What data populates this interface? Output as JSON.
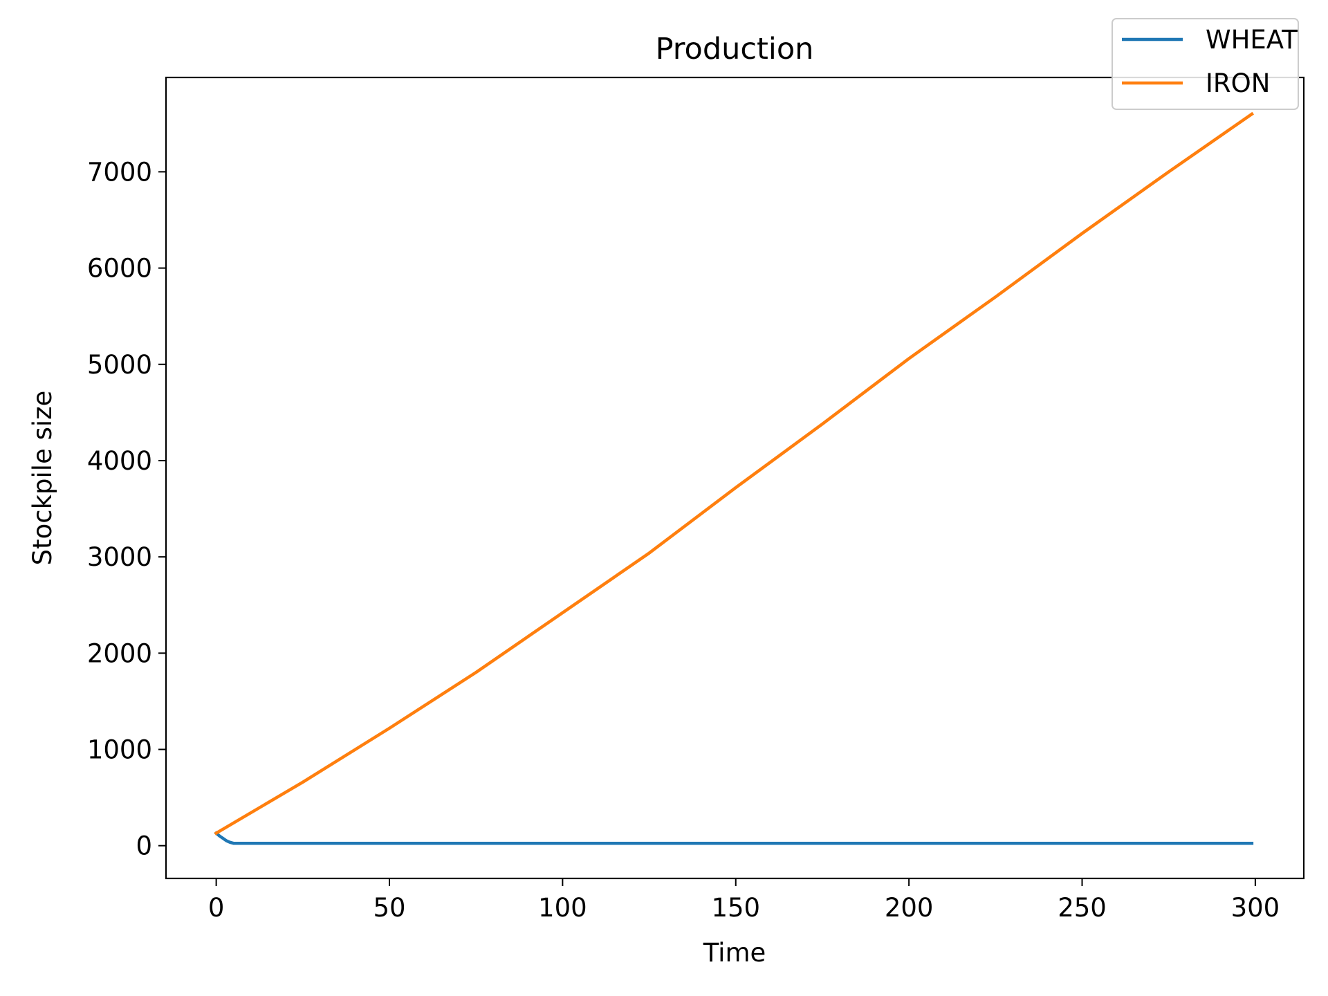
{
  "chart_data": {
    "type": "line",
    "title": "Production",
    "xlabel": "Time",
    "ylabel": "Stockpile size",
    "xlim": [
      -14.5,
      314
    ],
    "ylim": [
      -340,
      7980
    ],
    "xticks": [
      0,
      50,
      100,
      150,
      200,
      250,
      300
    ],
    "yticks": [
      0,
      1000,
      2000,
      3000,
      4000,
      5000,
      6000,
      7000
    ],
    "grid": false,
    "legend": {
      "position": "top-right",
      "entries": [
        "WHEAT",
        "IRON"
      ]
    },
    "series": [
      {
        "name": "WHEAT",
        "color": "#1f77b4",
        "x": [
          0,
          1,
          2,
          3,
          4,
          5,
          10,
          50,
          100,
          150,
          200,
          250,
          299
        ],
        "y": [
          130,
          100,
          75,
          50,
          35,
          25,
          25,
          25,
          25,
          25,
          25,
          25,
          25
        ]
      },
      {
        "name": "IRON",
        "color": "#ff7f0e",
        "x": [
          0,
          25,
          50,
          75,
          100,
          125,
          150,
          175,
          200,
          225,
          250,
          275,
          299
        ],
        "y": [
          130,
          660,
          1220,
          1800,
          2420,
          3040,
          3720,
          4380,
          5060,
          5700,
          6360,
          7000,
          7600
        ]
      }
    ]
  }
}
